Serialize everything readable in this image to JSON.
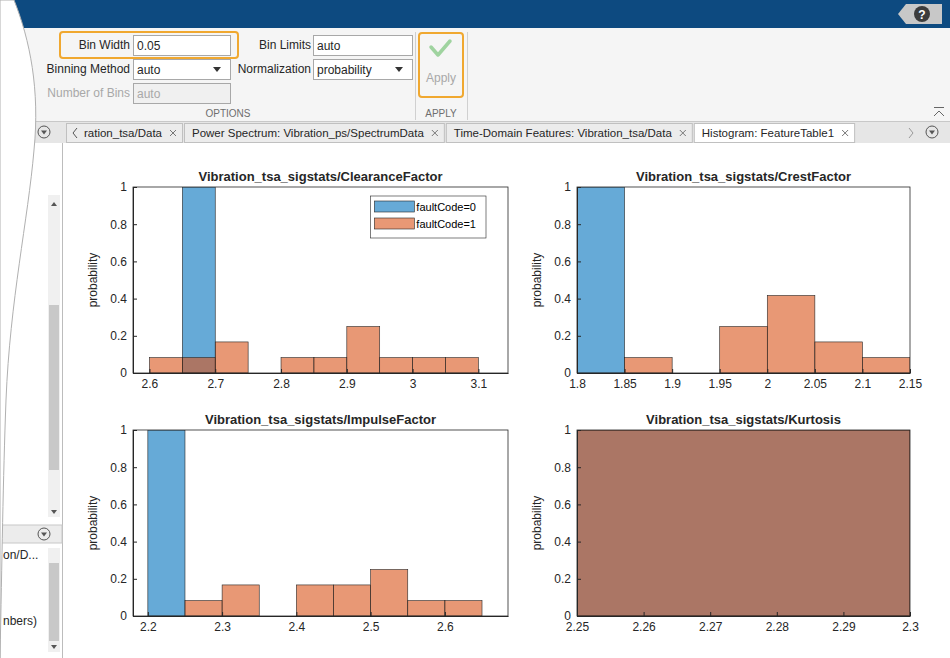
{
  "header": {
    "help": "?"
  },
  "toolbar": {
    "fields": [
      {
        "label": "Bin Width",
        "value": "0.05"
      },
      {
        "label": "Binning Method",
        "value": "auto"
      },
      {
        "label": "Number of Bins",
        "value": "auto"
      },
      {
        "label": "Bin Limits",
        "value": "auto"
      },
      {
        "label": "Normalization",
        "value": "probability"
      }
    ],
    "sections": [
      "OPTIONS",
      "APPLY"
    ],
    "apply": "Apply"
  },
  "tabs": [
    "ration_tsa/Data",
    "Power Spectrum: Vibration_ps/SpectrumData",
    "Time-Domain Features: Vibration_tsa/Data",
    "Histogram: FeatureTable1"
  ],
  "side_panel": [
    "on/D...",
    "nbers)"
  ],
  "chart_data": [
    {
      "type": "histogram",
      "title": "Vibration_tsa_sigstats/ClearanceFactor",
      "y_label": "probability",
      "xlim": [
        2.575,
        3.145
      ],
      "xticks": [
        2.6,
        2.7,
        2.8,
        2.9,
        3,
        3.1
      ],
      "ylim": [
        0,
        1
      ],
      "yticks": [
        0,
        0.2,
        0.4,
        0.6,
        0.8,
        1
      ],
      "legend": "northeast",
      "series": [
        {
          "name": "faultCode=0",
          "color": "#0072BD",
          "bins": [
            2.65,
            2.7
          ],
          "values": [
            1
          ]
        },
        {
          "name": "faultCode=1",
          "color": "#D95319",
          "bins": [
            2.6,
            2.65,
            2.7,
            2.75,
            2.8,
            2.85,
            2.9,
            2.95,
            3.0,
            3.05,
            3.1
          ],
          "values": [
            0.083,
            0.083,
            0.167,
            0,
            0.083,
            0.083,
            0.25,
            0.083,
            0.083,
            0.083
          ]
        }
      ]
    },
    {
      "type": "histogram",
      "title": "Vibration_tsa_sigstats/CrestFactor",
      "y_label": "probability",
      "xlim": [
        1.8,
        2.15
      ],
      "xticks": [
        1.8,
        1.85,
        1.9,
        1.95,
        2,
        2.05,
        2.1,
        2.15
      ],
      "ylim": [
        0,
        1
      ],
      "yticks": [
        0,
        0.2,
        0.4,
        0.6,
        0.8,
        1
      ],
      "series": [
        {
          "color": "#0072BD",
          "bins": [
            1.8,
            1.85
          ],
          "values": [
            1
          ]
        },
        {
          "color": "#D95319",
          "bins": [
            1.85,
            1.9,
            1.95,
            2.0,
            2.05,
            2.1,
            2.15
          ],
          "values": [
            0.083,
            0,
            0.25,
            0.417,
            0.167,
            0.083
          ]
        }
      ]
    },
    {
      "type": "histogram",
      "title": "Vibration_tsa_sigstats/ImpulseFactor",
      "y_label": "probability",
      "xlim": [
        2.18,
        2.685
      ],
      "xticks": [
        2.2,
        2.3,
        2.4,
        2.5,
        2.6
      ],
      "ylim": [
        0,
        1
      ],
      "yticks": [
        0,
        0.2,
        0.4,
        0.6,
        0.8,
        1
      ],
      "series": [
        {
          "color": "#0072BD",
          "bins": [
            2.2,
            2.25
          ],
          "values": [
            1
          ]
        },
        {
          "color": "#D95319",
          "bins": [
            2.25,
            2.3,
            2.35,
            2.4,
            2.45,
            2.5,
            2.55,
            2.6,
            2.65
          ],
          "values": [
            0.083,
            0.167,
            0,
            0.167,
            0.167,
            0.25,
            0.083,
            0.083
          ]
        }
      ]
    },
    {
      "type": "histogram",
      "title": "Vibration_tsa_sigstats/Kurtosis",
      "y_label": "probability",
      "xlim": [
        2.25,
        2.3
      ],
      "xticks": [
        2.25,
        2.26,
        2.27,
        2.28,
        2.29,
        2.3
      ],
      "ylim": [
        0,
        1
      ],
      "yticks": [
        0,
        0.2,
        0.4,
        0.6,
        0.8,
        1
      ],
      "series": [
        {
          "color": "#0072BD",
          "bins": [
            2.25,
            2.3
          ],
          "values": [
            1
          ]
        },
        {
          "color": "#D95319",
          "bins": [
            2.25,
            2.3
          ],
          "values": [
            1
          ]
        }
      ]
    }
  ]
}
